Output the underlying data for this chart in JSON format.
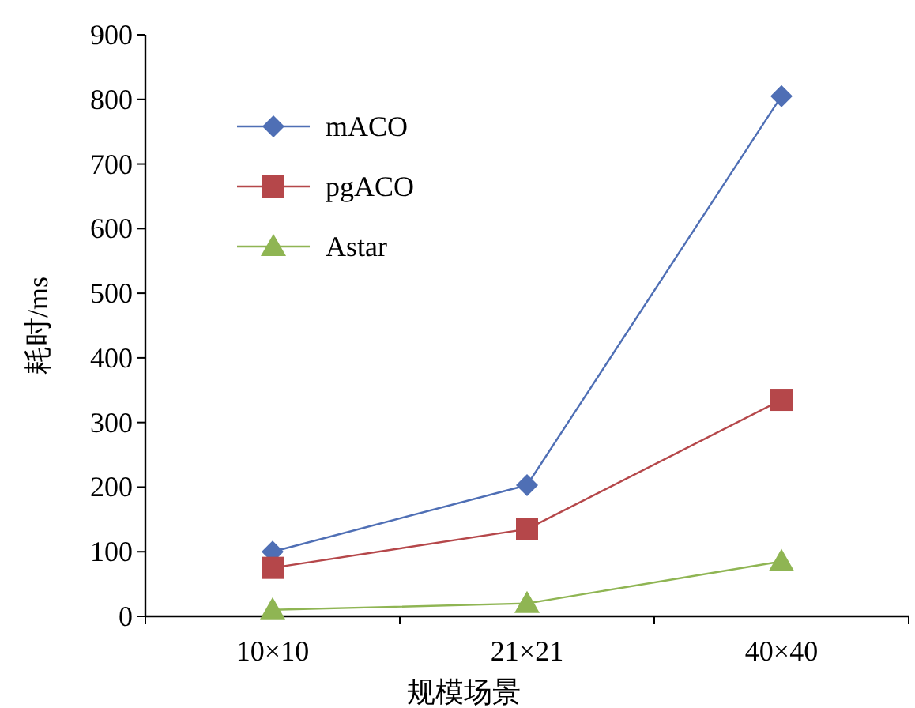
{
  "chart_data": {
    "type": "line",
    "xlabel": "规模场景",
    "ylabel": "耗时/ms",
    "categories": [
      "10×10",
      "21×21",
      "40×40"
    ],
    "ylim": [
      0,
      900
    ],
    "yticks": [
      0,
      100,
      200,
      300,
      400,
      500,
      600,
      700,
      800,
      900
    ],
    "grid": false,
    "legend": "top left",
    "line_style": "solid",
    "series": [
      {
        "name": "mACO",
        "color": "#4f6fb5",
        "marker": "diamond",
        "values": [
          100,
          203,
          805
        ]
      },
      {
        "name": "pgACO",
        "color": "#b5474a",
        "marker": "square",
        "values": [
          75,
          135,
          335
        ]
      },
      {
        "name": "Astar",
        "color": "#8fb553",
        "marker": "triangle",
        "values": [
          10,
          20,
          85
        ]
      }
    ]
  }
}
